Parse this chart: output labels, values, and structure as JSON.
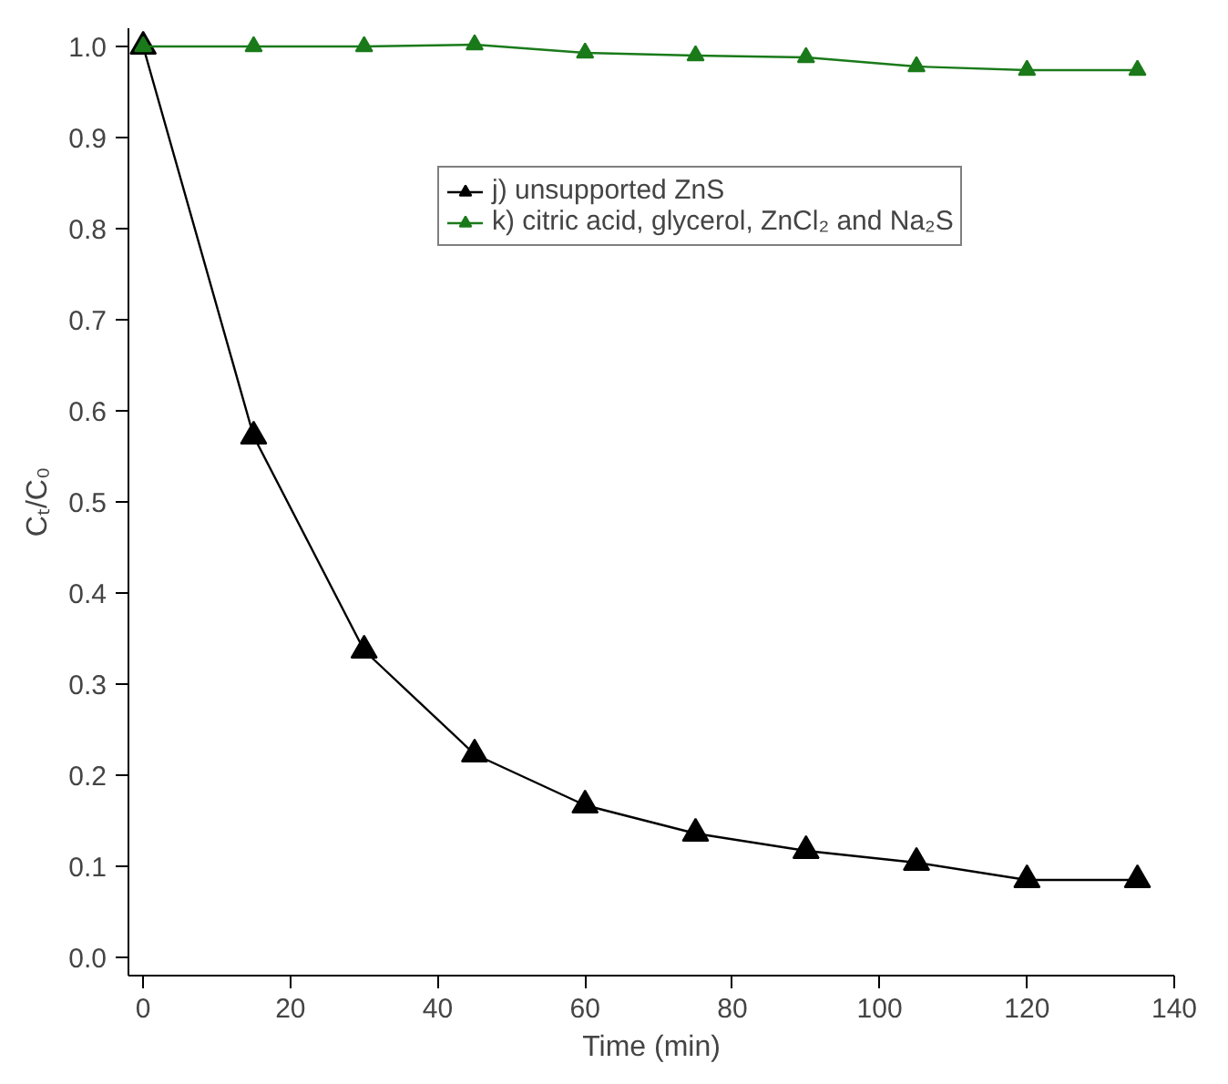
{
  "chart_data": {
    "type": "line",
    "xlabel": "Time (min)",
    "ylabel": "Cₜ/C₀",
    "x": [
      0,
      15,
      30,
      45,
      60,
      75,
      90,
      105,
      120,
      135
    ],
    "series": [
      {
        "name": "j) unsupported ZnS",
        "color": "#000000",
        "values": [
          1.0,
          0.572,
          0.337,
          0.223,
          0.167,
          0.136,
          0.117,
          0.104,
          0.085,
          0.085
        ]
      },
      {
        "name": "k) citric acid, glycerol, ZnCl₂ and Na₂S",
        "color": "#1a7a1a",
        "values": [
          1.0,
          1.0,
          1.0,
          1.002,
          0.993,
          0.99,
          0.988,
          0.978,
          0.974,
          0.974
        ]
      }
    ],
    "xlim": [
      -2,
      140
    ],
    "ylim": [
      -0.02,
      1.02
    ],
    "xticks": [
      0,
      20,
      40,
      60,
      80,
      100,
      120,
      140
    ],
    "yticks": [
      {
        "value": 0,
        "label": "0.0"
      },
      {
        "value": 0.1,
        "label": "0.1"
      },
      {
        "value": 0.2,
        "label": "0.2"
      },
      {
        "value": 0.3,
        "label": "0.3"
      },
      {
        "value": 0.4,
        "label": "0.4"
      },
      {
        "value": 0.5,
        "label": "0.5"
      },
      {
        "value": 0.6,
        "label": "0.6"
      },
      {
        "value": 0.7,
        "label": "0.7"
      },
      {
        "value": 0.8,
        "label": "0.8"
      },
      {
        "value": 0.9,
        "label": "0.9"
      },
      {
        "value": 1,
        "label": "1.0"
      }
    ],
    "grid": false,
    "legend": "top right",
    "marker": "triangle",
    "line_style": "solid"
  }
}
